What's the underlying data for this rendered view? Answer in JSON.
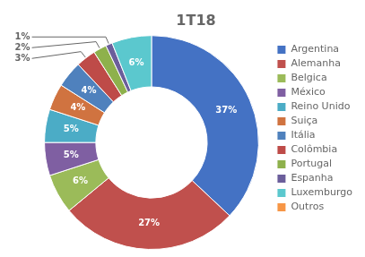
{
  "chart_data": {
    "type": "doughnut",
    "title": "1T18",
    "categories": [
      "Argentina",
      "Alemanha",
      "Belgica",
      "México",
      "Reino Unido",
      "Suiça",
      "Itália",
      "Colômbia",
      "Portugal",
      "Espanha",
      "Luxemburgo",
      "Outros"
    ],
    "values": [
      37,
      27,
      6,
      5,
      5,
      4,
      4,
      3,
      2,
      1,
      6,
      0
    ],
    "value_labels": [
      "37%",
      "27%",
      "6%",
      "5%",
      "5%",
      "4%",
      "4%",
      "3%",
      "2%",
      "1%",
      "6%",
      null
    ],
    "colors": [
      "#4472C4",
      "#C0504D",
      "#9BBB59",
      "#7F5FA2",
      "#4BACC6",
      "#D07340",
      "#4F81BD",
      "#BE4B48",
      "#8EB14C",
      "#6B5E9B",
      "#5BC8CE",
      "#F79646"
    ],
    "data_labels": true,
    "legend": "right"
  }
}
